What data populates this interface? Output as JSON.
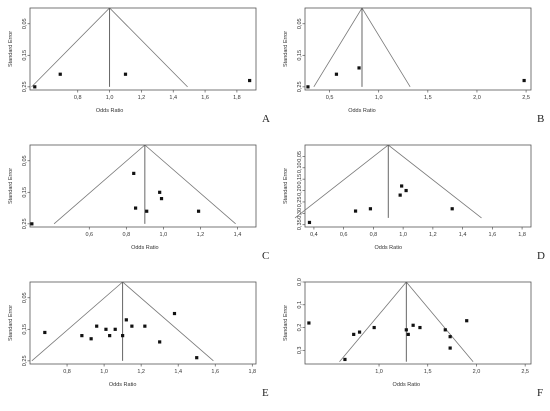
{
  "chart_data": [
    {
      "panel": "A",
      "type": "scatter",
      "xlabel": "Odds Ratio",
      "ylabel": "Standard Error",
      "xticks": [
        "0,8",
        "1,0",
        "1,2",
        "1,4",
        "1,6",
        "1,8"
      ],
      "yticks": [
        "0,05",
        "0,15",
        "0,25"
      ],
      "pooled": 1.0,
      "points": [
        [
          0.53,
          0.25
        ],
        [
          0.69,
          0.21
        ],
        [
          1.1,
          0.21
        ],
        [
          1.88,
          0.23
        ]
      ]
    },
    {
      "panel": "B",
      "type": "scatter",
      "xlabel": "Odds Ratio",
      "ylabel": "Standard Error",
      "xticks": [
        "0,5",
        "1,0",
        "1,5",
        "2,0",
        "2,5"
      ],
      "yticks": [
        "0,05",
        "0,15",
        "0,25"
      ],
      "pooled": 0.83,
      "points": [
        [
          0.28,
          0.25
        ],
        [
          0.57,
          0.21
        ],
        [
          0.8,
          0.19
        ],
        [
          2.48,
          0.23
        ]
      ]
    },
    {
      "panel": "C",
      "type": "scatter",
      "xlabel": "Odds Ratio",
      "ylabel": "Standard Error",
      "xticks": [
        "0,6",
        "0,8",
        "1,0",
        "1,2",
        "1,4"
      ],
      "yticks": [
        "0,05",
        "0,15",
        "0,25"
      ],
      "pooled": 0.9,
      "points": [
        [
          0.29,
          0.25
        ],
        [
          0.84,
          0.09
        ],
        [
          0.85,
          0.2
        ],
        [
          0.91,
          0.21
        ],
        [
          0.98,
          0.15
        ],
        [
          0.99,
          0.17
        ],
        [
          1.19,
          0.21
        ]
      ]
    },
    {
      "panel": "D",
      "type": "scatter",
      "xlabel": "Odds Ratio",
      "ylabel": "Standard Error",
      "xticks": [
        "0,4",
        "0,6",
        "0,8",
        "1,0",
        "1,2",
        "1,4",
        "1,6",
        "1,8"
      ],
      "yticks": [
        "0,05",
        "0,10",
        "0,15",
        "0,20",
        "0,25",
        "0,30",
        "0,35"
      ],
      "pooled": 0.9,
      "points": [
        [
          0.37,
          0.34
        ],
        [
          0.68,
          0.29
        ],
        [
          0.78,
          0.28
        ],
        [
          0.98,
          0.22
        ],
        [
          0.99,
          0.18
        ],
        [
          1.02,
          0.2
        ],
        [
          1.33,
          0.28
        ]
      ]
    },
    {
      "panel": "E",
      "type": "scatter",
      "xlabel": "Odds Ratio",
      "ylabel": "Standard Error",
      "xticks": [
        "0,8",
        "1,0",
        "1,2",
        "1,4",
        "1,6",
        "1,8"
      ],
      "yticks": [
        "0,05",
        "0,15",
        "0,25"
      ],
      "pooled": 1.1,
      "points": [
        [
          0.68,
          0.16
        ],
        [
          0.88,
          0.17
        ],
        [
          0.93,
          0.18
        ],
        [
          0.96,
          0.14
        ],
        [
          1.01,
          0.15
        ],
        [
          1.03,
          0.17
        ],
        [
          1.06,
          0.15
        ],
        [
          1.1,
          0.17
        ],
        [
          1.12,
          0.12
        ],
        [
          1.15,
          0.14
        ],
        [
          1.22,
          0.14
        ],
        [
          1.3,
          0.19
        ],
        [
          1.38,
          0.1
        ],
        [
          1.5,
          0.24
        ]
      ]
    },
    {
      "panel": "F",
      "type": "scatter",
      "xlabel": "Odds Ratio",
      "ylabel": "Standard Error",
      "xticks": [
        "1,0",
        "1,5",
        "2,0",
        "2,5"
      ],
      "yticks": [
        "0,0",
        "0,1",
        "0,2",
        "0,3"
      ],
      "pooled": 1.28,
      "points": [
        [
          0.28,
          0.18
        ],
        [
          0.65,
          0.34
        ],
        [
          0.74,
          0.23
        ],
        [
          0.8,
          0.22
        ],
        [
          0.95,
          0.2
        ],
        [
          1.28,
          0.21
        ],
        [
          1.3,
          0.23
        ],
        [
          1.35,
          0.19
        ],
        [
          1.42,
          0.2
        ],
        [
          1.68,
          0.21
        ],
        [
          1.73,
          0.29
        ],
        [
          1.73,
          0.24
        ],
        [
          1.9,
          0.17
        ]
      ]
    }
  ]
}
